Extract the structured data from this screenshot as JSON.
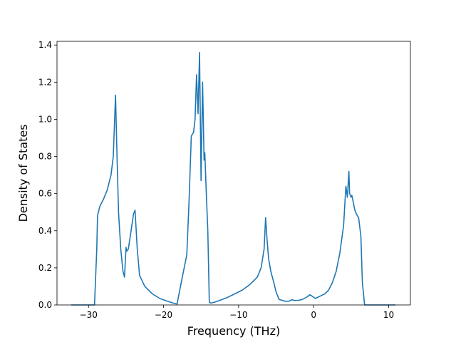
{
  "chart_data": {
    "type": "line",
    "title": "",
    "xlabel": "Frequency (THz)",
    "ylabel": "Density of States",
    "xlim": [
      -34.2,
      12.9
    ],
    "ylim": [
      0,
      1.42
    ],
    "xticks": [
      -30,
      -20,
      -10,
      0,
      10
    ],
    "yticks": [
      0.0,
      0.2,
      0.4,
      0.6,
      0.8,
      1.0,
      1.2,
      1.4
    ],
    "xtick_labels": [
      "−30",
      "−20",
      "−10",
      "0",
      "10"
    ],
    "ytick_labels": [
      "0.0",
      "0.2",
      "0.4",
      "0.6",
      "0.8",
      "1.0",
      "1.2",
      "1.4"
    ],
    "grid": false,
    "series": [
      {
        "color": "#1f77b4",
        "x": [
          -32.3,
          -29.2,
          -28.9,
          -28.8,
          -28.5,
          -28.0,
          -27.5,
          -27.0,
          -26.7,
          -26.4,
          -26.2,
          -26.0,
          -25.7,
          -25.4,
          -25.2,
          -25.0,
          -24.9,
          -24.7,
          -24.4,
          -24.0,
          -23.8,
          -23.5,
          -23.2,
          -22.5,
          -21.5,
          -20.5,
          -19.5,
          -18.7,
          -18.2,
          -17.5,
          -16.9,
          -16.6,
          -16.3,
          -16.0,
          -15.8,
          -15.6,
          -15.4,
          -15.2,
          -15.0,
          -14.8,
          -14.7,
          -14.6,
          -14.5,
          -14.3,
          -14.1,
          -13.9,
          -13.7,
          -13.2,
          -12.5,
          -11.5,
          -10.5,
          -9.5,
          -8.5,
          -7.5,
          -7.0,
          -6.6,
          -6.4,
          -6.2,
          -6.0,
          -5.7,
          -5.3,
          -5.0,
          -4.6,
          -4.2,
          -3.8,
          -3.3,
          -2.9,
          -2.5,
          -2.0,
          -1.5,
          -1.0,
          -0.5,
          -0.1,
          0.2,
          0.5,
          1.0,
          1.5,
          2.0,
          2.5,
          3.0,
          3.5,
          4.0,
          4.3,
          4.5,
          4.7,
          4.8,
          5.0,
          5.1,
          5.3,
          5.5,
          5.7,
          6.0,
          6.3,
          6.5,
          6.8,
          7.0,
          7.2,
          7.5,
          8.0,
          9.0,
          10.9
        ],
        "y": [
          0.0,
          0.0,
          0.3,
          0.48,
          0.53,
          0.57,
          0.62,
          0.7,
          0.8,
          1.13,
          0.8,
          0.5,
          0.3,
          0.18,
          0.15,
          0.31,
          0.29,
          0.3,
          0.38,
          0.49,
          0.51,
          0.3,
          0.16,
          0.1,
          0.06,
          0.035,
          0.02,
          0.01,
          0.005,
          0.15,
          0.27,
          0.56,
          0.91,
          0.93,
          1.0,
          1.24,
          1.03,
          1.36,
          0.67,
          1.2,
          1.0,
          0.78,
          0.82,
          0.6,
          0.4,
          0.015,
          0.01,
          0.015,
          0.025,
          0.04,
          0.06,
          0.08,
          0.11,
          0.15,
          0.2,
          0.3,
          0.47,
          0.35,
          0.25,
          0.18,
          0.12,
          0.07,
          0.03,
          0.025,
          0.02,
          0.02,
          0.028,
          0.024,
          0.025,
          0.03,
          0.04,
          0.055,
          0.045,
          0.035,
          0.04,
          0.05,
          0.06,
          0.08,
          0.12,
          0.18,
          0.28,
          0.43,
          0.64,
          0.58,
          0.72,
          0.6,
          0.58,
          0.59,
          0.55,
          0.51,
          0.49,
          0.47,
          0.37,
          0.12,
          0.0,
          0.0,
          0.0,
          0.0,
          0.0,
          0.0,
          0.0
        ]
      }
    ]
  }
}
